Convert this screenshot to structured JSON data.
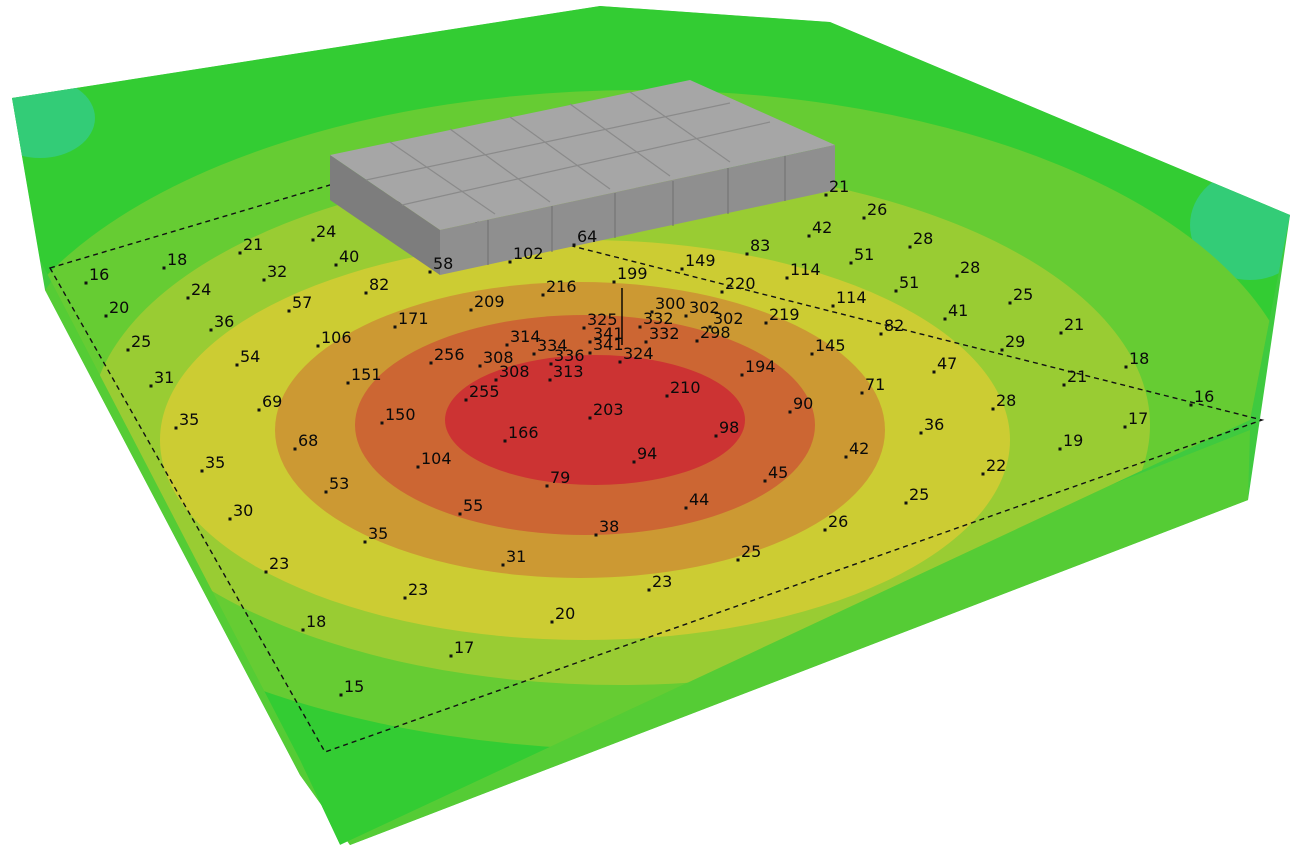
{
  "colors": {
    "ground_green": "#3fca3f",
    "top_green": "#33cc33",
    "light_green": "#66cc33",
    "yellow_green": "#99cc33",
    "yellow": "#cccc33",
    "orange_yellow": "#cc9933",
    "orange": "#cc6633",
    "red": "#cc3333",
    "teal": "#33cc77",
    "building": "#a6a6a6"
  },
  "calc_points": [
    {
      "id": "p01",
      "value": "16"
    },
    {
      "id": "p02",
      "value": "18"
    },
    {
      "id": "p03",
      "value": "21"
    },
    {
      "id": "p04",
      "value": "24"
    },
    {
      "id": "p05",
      "value": "20"
    },
    {
      "id": "p06",
      "value": "24"
    },
    {
      "id": "p07",
      "value": "32"
    },
    {
      "id": "p08",
      "value": "40"
    },
    {
      "id": "p09",
      "value": "25"
    },
    {
      "id": "p10",
      "value": "36"
    },
    {
      "id": "p11",
      "value": "57"
    },
    {
      "id": "p12",
      "value": "82"
    },
    {
      "id": "p13",
      "value": "31"
    },
    {
      "id": "p14",
      "value": "54"
    },
    {
      "id": "p15",
      "value": "106"
    },
    {
      "id": "p16",
      "value": "171"
    },
    {
      "id": "p17",
      "value": "209"
    },
    {
      "id": "p18",
      "value": "216"
    },
    {
      "id": "p19",
      "value": "199"
    },
    {
      "id": "p20",
      "value": "149"
    },
    {
      "id": "p21",
      "value": "83"
    },
    {
      "id": "p22",
      "value": "42"
    },
    {
      "id": "p23",
      "value": "26"
    },
    {
      "id": "p24",
      "value": "21"
    },
    {
      "id": "p25",
      "value": "220"
    },
    {
      "id": "p26",
      "value": "114"
    },
    {
      "id": "p27",
      "value": "51"
    },
    {
      "id": "p28",
      "value": "28"
    },
    {
      "id": "p29",
      "value": "28"
    },
    {
      "id": "p30",
      "value": "300"
    },
    {
      "id": "p31",
      "value": "302"
    },
    {
      "id": "p32",
      "value": "325"
    },
    {
      "id": "p33",
      "value": "332"
    },
    {
      "id": "p34",
      "value": "302"
    },
    {
      "id": "p35",
      "value": "219"
    },
    {
      "id": "p36",
      "value": "114"
    },
    {
      "id": "p37",
      "value": "51"
    },
    {
      "id": "p38",
      "value": "25"
    },
    {
      "id": "p39",
      "value": "341"
    },
    {
      "id": "p40",
      "value": "332"
    },
    {
      "id": "p41",
      "value": "298"
    },
    {
      "id": "p42",
      "value": "314"
    },
    {
      "id": "p43",
      "value": "334"
    },
    {
      "id": "p44",
      "value": "341"
    },
    {
      "id": "p45",
      "value": "82"
    },
    {
      "id": "p46",
      "value": "41"
    },
    {
      "id": "p47",
      "value": "21"
    },
    {
      "id": "p48",
      "value": "256"
    },
    {
      "id": "p49",
      "value": "308"
    },
    {
      "id": "p50",
      "value": "336"
    },
    {
      "id": "p51",
      "value": "324"
    },
    {
      "id": "p52",
      "value": "145"
    },
    {
      "id": "p53",
      "value": "29"
    },
    {
      "id": "p54",
      "value": "151"
    },
    {
      "id": "p55",
      "value": "308"
    },
    {
      "id": "p56",
      "value": "313"
    },
    {
      "id": "p57",
      "value": "194"
    },
    {
      "id": "p58",
      "value": "47"
    },
    {
      "id": "p59",
      "value": "18"
    },
    {
      "id": "p60",
      "value": "69"
    },
    {
      "id": "p61",
      "value": "255"
    },
    {
      "id": "p62",
      "value": "210"
    },
    {
      "id": "p63",
      "value": "71"
    },
    {
      "id": "p64",
      "value": "21"
    },
    {
      "id": "p65",
      "value": "35"
    },
    {
      "id": "p66",
      "value": "150"
    },
    {
      "id": "p67",
      "value": "203"
    },
    {
      "id": "p68",
      "value": "90"
    },
    {
      "id": "p69",
      "value": "28"
    },
    {
      "id": "p70",
      "value": "16"
    },
    {
      "id": "p71",
      "value": "68"
    },
    {
      "id": "p72",
      "value": "166"
    },
    {
      "id": "p73",
      "value": "98"
    },
    {
      "id": "p74",
      "value": "36"
    },
    {
      "id": "p75",
      "value": "17"
    },
    {
      "id": "p76",
      "value": "35"
    },
    {
      "id": "p77",
      "value": "104"
    },
    {
      "id": "p78",
      "value": "94"
    },
    {
      "id": "p79",
      "value": "42"
    },
    {
      "id": "p80",
      "value": "19"
    },
    {
      "id": "p81",
      "value": "53"
    },
    {
      "id": "p82",
      "value": "79"
    },
    {
      "id": "p83",
      "value": "45"
    },
    {
      "id": "p84",
      "value": "22"
    },
    {
      "id": "p85",
      "value": "30"
    },
    {
      "id": "p86",
      "value": "55"
    },
    {
      "id": "p87",
      "value": "44"
    },
    {
      "id": "p88",
      "value": "25"
    },
    {
      "id": "p89",
      "value": "35"
    },
    {
      "id": "p90",
      "value": "38"
    },
    {
      "id": "p91",
      "value": "26"
    },
    {
      "id": "p92",
      "value": "23"
    },
    {
      "id": "p93",
      "value": "31"
    },
    {
      "id": "p94",
      "value": "25"
    },
    {
      "id": "p95",
      "value": "23"
    },
    {
      "id": "p96",
      "value": "23"
    },
    {
      "id": "p97",
      "value": "18"
    },
    {
      "id": "p98",
      "value": "20"
    },
    {
      "id": "p99",
      "value": "17"
    },
    {
      "id": "p100",
      "value": "15"
    },
    {
      "id": "p101",
      "value": "102"
    },
    {
      "id": "p102",
      "value": "64"
    },
    {
      "id": "p103",
      "value": "58"
    }
  ]
}
